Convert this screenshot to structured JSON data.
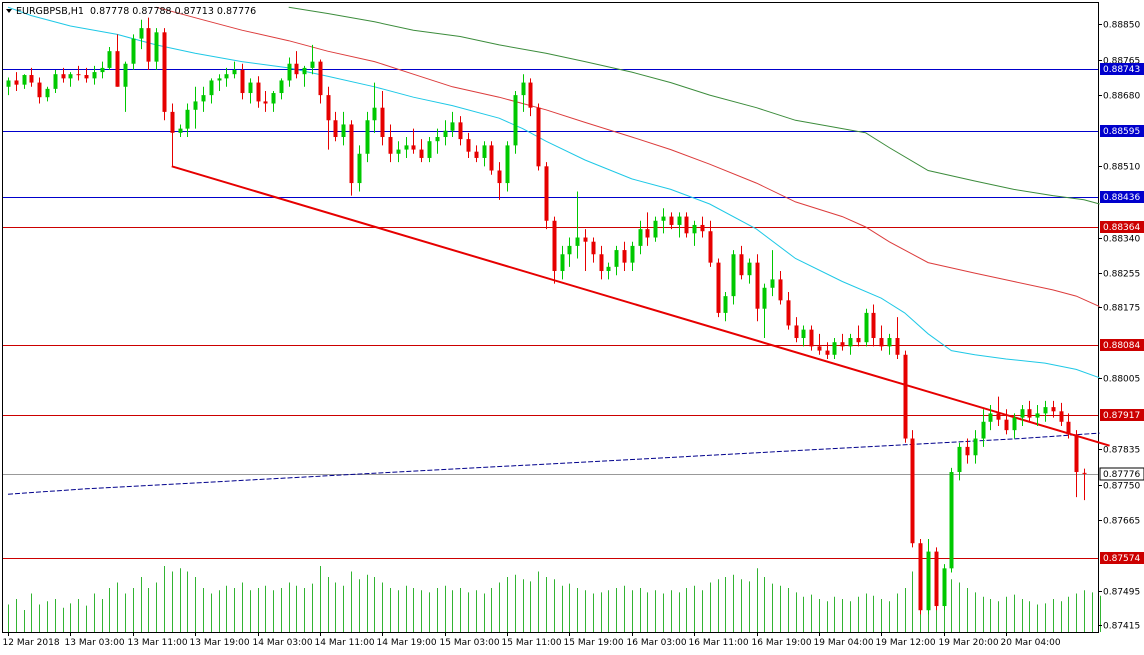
{
  "header": {
    "symbol": "EURGBPSB,H1",
    "quote": "0.87778 0.87788 0.87713 0.87776"
  },
  "chart_data": {
    "type": "candlestick",
    "ylim": [
      0.87398,
      0.889
    ],
    "y_ticks": [
      "0.88850",
      "0.88765",
      "0.88680",
      "0.88510",
      "0.88340",
      "0.88255",
      "0.88175",
      "0.88005",
      "0.87835",
      "0.87750",
      "0.87665",
      "0.87495",
      "0.87415"
    ],
    "x_tick_labels": [
      "12 Mar 2018",
      "13 Mar 03:00",
      "13 Mar 11:00",
      "13 Mar 19:00",
      "14 Mar 03:00",
      "14 Mar 11:00",
      "14 Mar 19:00",
      "15 Mar 03:00",
      "15 Mar 11:00",
      "15 Mar 19:00",
      "16 Mar 03:00",
      "16 Mar 11:00",
      "16 Mar 19:00",
      "19 Mar 04:00",
      "19 Mar 12:00",
      "19 Mar 20:00",
      "20 Mar 04:00"
    ],
    "current_price": "0.87776",
    "levels": [
      {
        "label": "0.88743",
        "value": 0.88743,
        "color": "#0000cc"
      },
      {
        "label": "0.88595",
        "value": 0.88595,
        "color": "#0000cc"
      },
      {
        "label": "0.88436",
        "value": 0.88436,
        "color": "#0000cc"
      },
      {
        "label": "0.88364",
        "value": 0.88364,
        "color": "#cc0000"
      },
      {
        "label": "0.88084",
        "value": 0.88084,
        "color": "#cc0000"
      },
      {
        "label": "0.87917",
        "value": 0.87917,
        "color": "#cc0000"
      },
      {
        "label": "0.87574",
        "value": 0.87574,
        "color": "#cc0000"
      }
    ],
    "colors": {
      "bull": "#00c800",
      "bear": "#e60000",
      "ma_fast": "#1ec8e6",
      "ma_mid": "#dc3c3c",
      "ma_slow": "#3c8c3c",
      "ma_long": "#00008c",
      "trendline": "#e60000",
      "volume": "#32b432",
      "current_label_bg": "#ffffff"
    },
    "candles": [
      [
        0.887,
        0.88722,
        0.8868,
        0.88715
      ],
      [
        0.88715,
        0.88735,
        0.8869,
        0.88705
      ],
      [
        0.88705,
        0.8873,
        0.88695,
        0.88728
      ],
      [
        0.88728,
        0.88745,
        0.887,
        0.8871
      ],
      [
        0.8871,
        0.88722,
        0.8866,
        0.88675
      ],
      [
        0.88675,
        0.887,
        0.88665,
        0.88695
      ],
      [
        0.88695,
        0.8874,
        0.88685,
        0.8873
      ],
      [
        0.8873,
        0.88745,
        0.8871,
        0.8872
      ],
      [
        0.8872,
        0.88735,
        0.887,
        0.8873
      ],
      [
        0.8873,
        0.8875,
        0.88715,
        0.88728
      ],
      [
        0.88728,
        0.88745,
        0.8871,
        0.8872
      ],
      [
        0.8872,
        0.8875,
        0.88705,
        0.88735
      ],
      [
        0.88735,
        0.8876,
        0.8872,
        0.88745
      ],
      [
        0.88745,
        0.88795,
        0.8874,
        0.88785
      ],
      [
        0.88785,
        0.88825,
        0.887,
        0.887
      ],
      [
        0.887,
        0.8876,
        0.8864,
        0.88755
      ],
      [
        0.88755,
        0.88825,
        0.8874,
        0.88815
      ],
      [
        0.88815,
        0.8886,
        0.8879,
        0.8884
      ],
      [
        0.8884,
        0.88865,
        0.8874,
        0.8876
      ],
      [
        0.8876,
        0.8884,
        0.8874,
        0.8883
      ],
      [
        0.8883,
        0.8884,
        0.8862,
        0.8864
      ],
      [
        0.8864,
        0.8866,
        0.8851,
        0.8859
      ],
      [
        0.8859,
        0.8861,
        0.8858,
        0.886
      ],
      [
        0.886,
        0.8866,
        0.8858,
        0.88645
      ],
      [
        0.88645,
        0.887,
        0.886,
        0.88665
      ],
      [
        0.88665,
        0.887,
        0.8864,
        0.8868
      ],
      [
        0.8868,
        0.8872,
        0.8866,
        0.88715
      ],
      [
        0.88715,
        0.8873,
        0.8869,
        0.8872
      ],
      [
        0.8872,
        0.88745,
        0.887,
        0.8873
      ],
      [
        0.8873,
        0.8876,
        0.8872,
        0.8874
      ],
      [
        0.8874,
        0.88755,
        0.8867,
        0.88685
      ],
      [
        0.88685,
        0.8872,
        0.8866,
        0.8871
      ],
      [
        0.8871,
        0.88725,
        0.8865,
        0.88665
      ],
      [
        0.88665,
        0.8869,
        0.8864,
        0.8866
      ],
      [
        0.8866,
        0.8869,
        0.8864,
        0.88685
      ],
      [
        0.88685,
        0.8872,
        0.8867,
        0.88715
      ],
      [
        0.88715,
        0.8877,
        0.887,
        0.88755
      ],
      [
        0.88755,
        0.88785,
        0.8872,
        0.8873
      ],
      [
        0.8873,
        0.8875,
        0.887,
        0.88745
      ],
      [
        0.88745,
        0.888,
        0.8873,
        0.8876
      ],
      [
        0.8876,
        0.88765,
        0.8866,
        0.8868
      ],
      [
        0.8868,
        0.887,
        0.8855,
        0.8862
      ],
      [
        0.8862,
        0.8864,
        0.8857,
        0.8858
      ],
      [
        0.8858,
        0.8864,
        0.8856,
        0.8861
      ],
      [
        0.8861,
        0.8862,
        0.8844,
        0.8847
      ],
      [
        0.8847,
        0.8856,
        0.8845,
        0.8854
      ],
      [
        0.8854,
        0.8864,
        0.8852,
        0.8862
      ],
      [
        0.8862,
        0.8871,
        0.8859,
        0.8865
      ],
      [
        0.8865,
        0.8869,
        0.8856,
        0.8858
      ],
      [
        0.8858,
        0.8861,
        0.8852,
        0.8854
      ],
      [
        0.8854,
        0.8857,
        0.8852,
        0.8855
      ],
      [
        0.8855,
        0.8858,
        0.8853,
        0.8856
      ],
      [
        0.8856,
        0.886,
        0.8854,
        0.8855
      ],
      [
        0.8855,
        0.88575,
        0.8852,
        0.8853
      ],
      [
        0.8853,
        0.8858,
        0.8852,
        0.8857
      ],
      [
        0.8857,
        0.886,
        0.8854,
        0.8858
      ],
      [
        0.8858,
        0.8862,
        0.8856,
        0.88595
      ],
      [
        0.88595,
        0.8864,
        0.8858,
        0.88615
      ],
      [
        0.88615,
        0.8863,
        0.8856,
        0.88575
      ],
      [
        0.88575,
        0.8859,
        0.8853,
        0.88545
      ],
      [
        0.88545,
        0.8856,
        0.8852,
        0.8853
      ],
      [
        0.8853,
        0.8857,
        0.8851,
        0.8856
      ],
      [
        0.8856,
        0.8857,
        0.8849,
        0.885
      ],
      [
        0.885,
        0.8852,
        0.8843,
        0.8847
      ],
      [
        0.8847,
        0.8857,
        0.8845,
        0.8856
      ],
      [
        0.8856,
        0.8869,
        0.8854,
        0.8868
      ],
      [
        0.8868,
        0.8873,
        0.8864,
        0.8871
      ],
      [
        0.8871,
        0.8872,
        0.8863,
        0.8865
      ],
      [
        0.8865,
        0.8866,
        0.885,
        0.8851
      ],
      [
        0.8851,
        0.8852,
        0.8836,
        0.8838
      ],
      [
        0.8838,
        0.8839,
        0.8823,
        0.8826
      ],
      [
        0.8826,
        0.8832,
        0.8824,
        0.883
      ],
      [
        0.883,
        0.8834,
        0.8827,
        0.8832
      ],
      [
        0.8832,
        0.8845,
        0.8829,
        0.8834
      ],
      [
        0.8834,
        0.8836,
        0.8826,
        0.8833
      ],
      [
        0.8833,
        0.8834,
        0.8828,
        0.883
      ],
      [
        0.883,
        0.8832,
        0.8824,
        0.8826
      ],
      [
        0.8826,
        0.8828,
        0.8824,
        0.8827
      ],
      [
        0.8827,
        0.8832,
        0.8825,
        0.8831
      ],
      [
        0.8831,
        0.8833,
        0.8826,
        0.8828
      ],
      [
        0.8828,
        0.8833,
        0.8826,
        0.8832
      ],
      [
        0.8832,
        0.8838,
        0.883,
        0.8836
      ],
      [
        0.8836,
        0.884,
        0.8832,
        0.8834
      ],
      [
        0.8834,
        0.8839,
        0.8833,
        0.8838
      ],
      [
        0.8838,
        0.8841,
        0.8835,
        0.8839
      ],
      [
        0.8839,
        0.884,
        0.8836,
        0.8837
      ],
      [
        0.8837,
        0.884,
        0.8834,
        0.8839
      ],
      [
        0.8839,
        0.884,
        0.8834,
        0.8835
      ],
      [
        0.8835,
        0.8838,
        0.8832,
        0.8837
      ],
      [
        0.8837,
        0.8839,
        0.8834,
        0.88355
      ],
      [
        0.88355,
        0.8838,
        0.8827,
        0.8828
      ],
      [
        0.8828,
        0.8829,
        0.8815,
        0.8816
      ],
      [
        0.8816,
        0.8821,
        0.8814,
        0.882
      ],
      [
        0.882,
        0.8831,
        0.8818,
        0.883
      ],
      [
        0.883,
        0.8832,
        0.8824,
        0.8825
      ],
      [
        0.8825,
        0.8829,
        0.8823,
        0.8828
      ],
      [
        0.8828,
        0.883,
        0.8814,
        0.8817
      ],
      [
        0.8817,
        0.8823,
        0.881,
        0.8822
      ],
      [
        0.8822,
        0.8831,
        0.882,
        0.8824
      ],
      [
        0.8824,
        0.8826,
        0.8818,
        0.8819
      ],
      [
        0.8819,
        0.8821,
        0.8812,
        0.8813
      ],
      [
        0.8813,
        0.8815,
        0.8809,
        0.881
      ],
      [
        0.881,
        0.8813,
        0.8808,
        0.8812
      ],
      [
        0.8812,
        0.8813,
        0.8807,
        0.8808
      ],
      [
        0.8808,
        0.8811,
        0.8806,
        0.8807
      ],
      [
        0.8807,
        0.8809,
        0.8805,
        0.8806
      ],
      [
        0.8806,
        0.881,
        0.8805,
        0.8809
      ],
      [
        0.8809,
        0.8811,
        0.8807,
        0.8808
      ],
      [
        0.8808,
        0.8811,
        0.8806,
        0.881
      ],
      [
        0.881,
        0.8813,
        0.8808,
        0.8809
      ],
      [
        0.8809,
        0.8817,
        0.8808,
        0.8816
      ],
      [
        0.8816,
        0.8818,
        0.8808,
        0.881
      ],
      [
        0.881,
        0.8813,
        0.8807,
        0.8808
      ],
      [
        0.8808,
        0.8811,
        0.8806,
        0.881
      ],
      [
        0.881,
        0.8815,
        0.8805,
        0.8806
      ],
      [
        0.8806,
        0.8807,
        0.8785,
        0.8786
      ],
      [
        0.8786,
        0.8788,
        0.876,
        0.8761
      ],
      [
        0.8761,
        0.8762,
        0.8744,
        0.8745
      ],
      [
        0.8745,
        0.8762,
        0.8744,
        0.8759
      ],
      [
        0.8759,
        0.876,
        0.8745,
        0.8746
      ],
      [
        0.8746,
        0.8756,
        0.8745,
        0.8755
      ],
      [
        0.8755,
        0.8779,
        0.8754,
        0.8778
      ],
      [
        0.8778,
        0.8785,
        0.8776,
        0.8784
      ],
      [
        0.8784,
        0.8786,
        0.878,
        0.8782
      ],
      [
        0.8782,
        0.8788,
        0.878,
        0.8786
      ],
      [
        0.8786,
        0.8793,
        0.8784,
        0.879
      ],
      [
        0.879,
        0.8794,
        0.8788,
        0.8792
      ],
      [
        0.8792,
        0.8796,
        0.8789,
        0.87905
      ],
      [
        0.87905,
        0.8793,
        0.8787,
        0.8788
      ],
      [
        0.8788,
        0.8792,
        0.8786,
        0.8791
      ],
      [
        0.8791,
        0.8794,
        0.8789,
        0.8793
      ],
      [
        0.8793,
        0.8795,
        0.879,
        0.8791
      ],
      [
        0.8791,
        0.8794,
        0.8789,
        0.8792
      ],
      [
        0.8792,
        0.8795,
        0.879,
        0.87935
      ],
      [
        0.87935,
        0.8795,
        0.8791,
        0.87925
      ],
      [
        0.87925,
        0.87945,
        0.8789,
        0.879
      ],
      [
        0.879,
        0.8792,
        0.8786,
        0.8787
      ],
      [
        0.8787,
        0.8788,
        0.8772,
        0.8778
      ],
      [
        0.87778,
        0.87788,
        0.87713,
        0.87776
      ]
    ],
    "ma_fast": [
      [
        0,
        0.8889
      ],
      [
        3,
        0.8887
      ],
      [
        8,
        0.88845
      ],
      [
        14,
        0.88825
      ],
      [
        19,
        0.888
      ],
      [
        24,
        0.8878
      ],
      [
        30,
        0.8876
      ],
      [
        36,
        0.88745
      ],
      [
        41,
        0.88725
      ],
      [
        47,
        0.887
      ],
      [
        52,
        0.88675
      ],
      [
        57,
        0.88655
      ],
      [
        63,
        0.88625
      ],
      [
        66,
        0.886
      ],
      [
        69,
        0.8857
      ],
      [
        74,
        0.88525
      ],
      [
        80,
        0.8848
      ],
      [
        85,
        0.88455
      ],
      [
        90,
        0.8842
      ],
      [
        96,
        0.8836
      ],
      [
        101,
        0.8829
      ],
      [
        107,
        0.88235
      ],
      [
        112,
        0.88195
      ],
      [
        115,
        0.8816
      ],
      [
        118,
        0.8811
      ],
      [
        121,
        0.8807
      ],
      [
        124,
        0.8806
      ],
      [
        128,
        0.8805
      ],
      [
        133,
        0.8804
      ],
      [
        137,
        0.88025
      ],
      [
        140,
        0.88005
      ]
    ],
    "ma_mid": [
      [
        19,
        0.8889
      ],
      [
        25,
        0.8886
      ],
      [
        30,
        0.88835
      ],
      [
        36,
        0.8881
      ],
      [
        41,
        0.88785
      ],
      [
        47,
        0.8876
      ],
      [
        52,
        0.8873
      ],
      [
        57,
        0.887
      ],
      [
        63,
        0.88675
      ],
      [
        69,
        0.88645
      ],
      [
        74,
        0.88615
      ],
      [
        80,
        0.8858
      ],
      [
        85,
        0.8855
      ],
      [
        90,
        0.88515
      ],
      [
        96,
        0.8847
      ],
      [
        101,
        0.88425
      ],
      [
        107,
        0.8839
      ],
      [
        110,
        0.88365
      ],
      [
        113,
        0.8833
      ],
      [
        118,
        0.8828
      ],
      [
        124,
        0.88255
      ],
      [
        129,
        0.88235
      ],
      [
        134,
        0.88215
      ],
      [
        137,
        0.882
      ],
      [
        140,
        0.88175
      ]
    ],
    "ma_slow": [
      [
        36,
        0.8889
      ],
      [
        41,
        0.88875
      ],
      [
        47,
        0.88855
      ],
      [
        52,
        0.88835
      ],
      [
        58,
        0.8882
      ],
      [
        63,
        0.888
      ],
      [
        69,
        0.8878
      ],
      [
        74,
        0.8876
      ],
      [
        80,
        0.88735
      ],
      [
        85,
        0.8871
      ],
      [
        90,
        0.8868
      ],
      [
        96,
        0.8865
      ],
      [
        101,
        0.8862
      ],
      [
        107,
        0.886
      ],
      [
        110,
        0.8859
      ],
      [
        113,
        0.88555
      ],
      [
        118,
        0.885
      ],
      [
        124,
        0.88475
      ],
      [
        129,
        0.88455
      ],
      [
        134,
        0.8844
      ],
      [
        138,
        0.8843
      ],
      [
        140,
        0.8842
      ]
    ],
    "ma_long": [
      [
        0,
        0.87727
      ],
      [
        10,
        0.8774
      ],
      [
        20,
        0.8775
      ],
      [
        30,
        0.8776
      ],
      [
        40,
        0.8777
      ],
      [
        50,
        0.8778
      ],
      [
        60,
        0.8779
      ],
      [
        70,
        0.878
      ],
      [
        80,
        0.8781
      ],
      [
        90,
        0.8782
      ],
      [
        100,
        0.8783
      ],
      [
        110,
        0.8784
      ],
      [
        120,
        0.8785
      ],
      [
        130,
        0.8786
      ],
      [
        140,
        0.87873
      ]
    ],
    "trendline": [
      [
        21,
        0.8851
      ],
      [
        140,
        0.8785
      ]
    ],
    "volume": [
      25,
      30,
      20,
      35,
      25,
      28,
      30,
      22,
      26,
      30,
      24,
      35,
      30,
      40,
      45,
      35,
      40,
      50,
      40,
      45,
      60,
      55,
      58,
      55,
      50,
      40,
      35,
      38,
      42,
      40,
      45,
      38,
      40,
      42,
      38,
      40,
      45,
      42,
      40,
      44,
      60,
      50,
      45,
      42,
      55,
      48,
      52,
      50,
      45,
      40,
      38,
      42,
      40,
      38,
      36,
      40,
      42,
      38,
      40,
      36,
      38,
      35,
      40,
      45,
      50,
      52,
      48,
      46,
      55,
      50,
      48,
      42,
      44,
      40,
      38,
      35,
      36,
      38,
      40,
      42,
      38,
      40,
      36,
      38,
      35,
      38,
      36,
      40,
      42,
      38,
      45,
      48,
      50,
      52,
      48,
      46,
      58,
      50,
      44,
      42,
      40,
      36,
      32,
      34,
      30,
      28,
      32,
      30,
      28,
      32,
      35,
      33,
      30,
      28,
      35,
      40,
      55,
      58,
      52,
      56,
      50,
      48,
      45,
      40,
      36,
      32,
      30,
      28,
      32,
      34,
      30,
      28,
      25,
      26,
      30,
      28,
      32,
      35,
      38,
      36,
      33
    ]
  }
}
